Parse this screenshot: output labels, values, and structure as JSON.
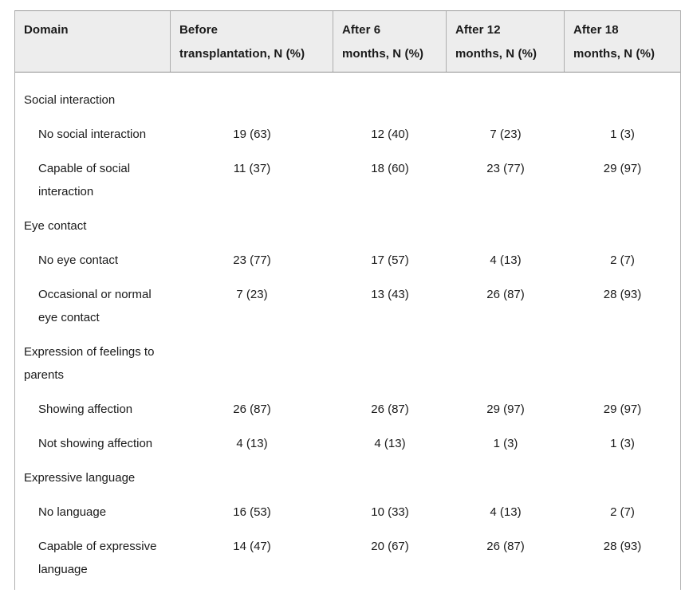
{
  "table": {
    "columns": [
      {
        "label": "Domain"
      },
      {
        "label": "Before\ntransplantation, N (%)"
      },
      {
        "label": "After 6\nmonths, N (%)"
      },
      {
        "label": "After 12\nmonths, N (%)"
      },
      {
        "label": "After 18\nmonths, N (%)"
      }
    ],
    "sections": [
      {
        "title": "Social interaction",
        "rows": [
          {
            "label": "No social interaction",
            "values": [
              "19 (63)",
              "12 (40)",
              "7 (23)",
              "1 (3)"
            ]
          },
          {
            "label": "Capable of social\ninteraction",
            "values": [
              "11 (37)",
              "18 (60)",
              "23 (77)",
              "29 (97)"
            ]
          }
        ]
      },
      {
        "title": "Eye contact",
        "rows": [
          {
            "label": "No eye contact",
            "values": [
              "23 (77)",
              "17 (57)",
              "4 (13)",
              "2 (7)"
            ]
          },
          {
            "label": "Occasional or normal\neye contact",
            "values": [
              "7 (23)",
              "13 (43)",
              "26 (87)",
              "28 (93)"
            ]
          }
        ]
      },
      {
        "title": "Expression of feelings to\nparents",
        "rows": [
          {
            "label": "Showing affection",
            "values": [
              "26 (87)",
              "26 (87)",
              "29 (97)",
              "29 (97)"
            ]
          },
          {
            "label": "Not showing affection",
            "values": [
              "4 (13)",
              "4 (13)",
              "1 (3)",
              "1 (3)"
            ]
          }
        ]
      },
      {
        "title": "Expressive language",
        "rows": [
          {
            "label": "No language",
            "values": [
              "16 (53)",
              "10 (33)",
              "4 (13)",
              "2 (7)"
            ]
          },
          {
            "label": "Capable of expressive\nlanguage",
            "values": [
              "14 (47)",
              "20 (67)",
              "26 (87)",
              "28 (93)"
            ]
          }
        ]
      }
    ],
    "colors": {
      "header_bg": "#ededed",
      "border_outer": "#9c9c9c",
      "border_inner": "#aeaeae",
      "text": "#1a1a1a"
    }
  }
}
